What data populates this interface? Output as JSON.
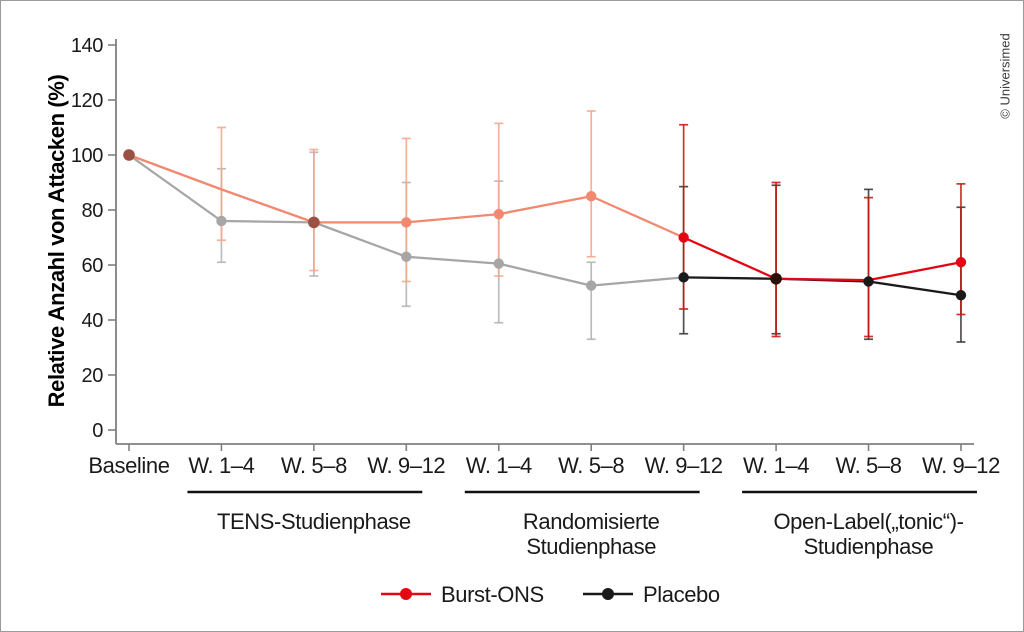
{
  "figure": {
    "credit": "© Universimed",
    "background": "#ffffff",
    "border_color": "#9a9a9a"
  },
  "chart_data": {
    "type": "line",
    "title": "",
    "xlabel": "",
    "ylabel": "Relative Anzahl von Attacken (%)",
    "ylim": [
      0,
      140
    ],
    "yticks": [
      0,
      20,
      40,
      60,
      80,
      100,
      120,
      140
    ],
    "grid": false,
    "legend_position": "bottom",
    "categories": [
      "Baseline",
      "W. 1–4",
      "W. 5–8",
      "W. 9–12",
      "W. 1–4",
      "W. 5–8",
      "W. 9–12",
      "W. 1–4",
      "W. 5–8",
      "W. 9–12"
    ],
    "phases": [
      {
        "label_lines": [
          "TENS-Studienphase"
        ],
        "from_index": 1,
        "to_index": 3
      },
      {
        "label_lines": [
          "Randomisierte",
          "Studienphase"
        ],
        "from_index": 4,
        "to_index": 6
      },
      {
        "label_lines": [
          "Open-Label(„tonic“)-",
          "Studienphase"
        ],
        "from_index": 7,
        "to_index": 9
      }
    ],
    "series": [
      {
        "name": "Placebo",
        "color_light": "#A8A6A4",
        "color_dark": "#1A1A1A",
        "errbar_light": "#B5B3B1",
        "errbar_dark": "#3A3634",
        "dark_from_index": 6,
        "points": [
          {
            "value": 100,
            "marker": false
          },
          {
            "value": 76,
            "err_lo": 61,
            "err_hi": 95,
            "marker": true
          },
          {
            "value": 75.5,
            "err_lo": 56,
            "err_hi": 101,
            "marker": false
          },
          {
            "value": 63,
            "err_lo": 45,
            "err_hi": 90,
            "marker": true
          },
          {
            "value": 60.5,
            "err_lo": 39,
            "err_hi": 90.5,
            "marker": true
          },
          {
            "value": 52.5,
            "err_lo": 33,
            "err_hi": 61,
            "marker": true
          },
          {
            "value": 55.5,
            "err_lo": 35,
            "err_hi": 88.5,
            "marker": true
          },
          {
            "value": 55,
            "err_lo": 35,
            "err_hi": 89,
            "marker": true
          },
          {
            "value": 54,
            "err_lo": 33,
            "err_hi": 87.5,
            "marker": true
          },
          {
            "value": 49,
            "err_lo": 32,
            "err_hi": 81,
            "marker": true
          }
        ]
      },
      {
        "name": "Burst-ONS",
        "color_light": "#F28870",
        "color_dark": "#E30613",
        "errbar_light": "#F5A68B",
        "errbar_dark": "#C8170F",
        "dark_from_index": 6,
        "points": [
          {
            "value": 100,
            "marker": true,
            "marker_color": "#9A5043"
          },
          {
            "value": 87.5,
            "err_lo": 69,
            "err_hi": 110,
            "marker": false
          },
          {
            "value": 75.5,
            "err_lo": 58,
            "err_hi": 102,
            "marker": true,
            "marker_color": "#9A5043"
          },
          {
            "value": 75.5,
            "err_lo": 54,
            "err_hi": 106,
            "marker": true
          },
          {
            "value": 78.5,
            "err_lo": 56,
            "err_hi": 111.5,
            "marker": true
          },
          {
            "value": 85,
            "err_lo": 63,
            "err_hi": 116,
            "marker": true
          },
          {
            "value": 70,
            "err_lo": 44,
            "err_hi": 111,
            "marker": true
          },
          {
            "value": 55,
            "err_lo": 34,
            "err_hi": 90,
            "marker": true,
            "marker_color": "#2E100A"
          },
          {
            "value": 54.5,
            "err_lo": 34,
            "err_hi": 84.5,
            "marker": false
          },
          {
            "value": 61,
            "err_lo": 42,
            "err_hi": 89.5,
            "marker": true
          }
        ]
      }
    ],
    "legend": [
      {
        "label": "Burst-ONS",
        "color": "#E30613"
      },
      {
        "label": "Placebo",
        "color": "#1A1A1A"
      }
    ]
  }
}
